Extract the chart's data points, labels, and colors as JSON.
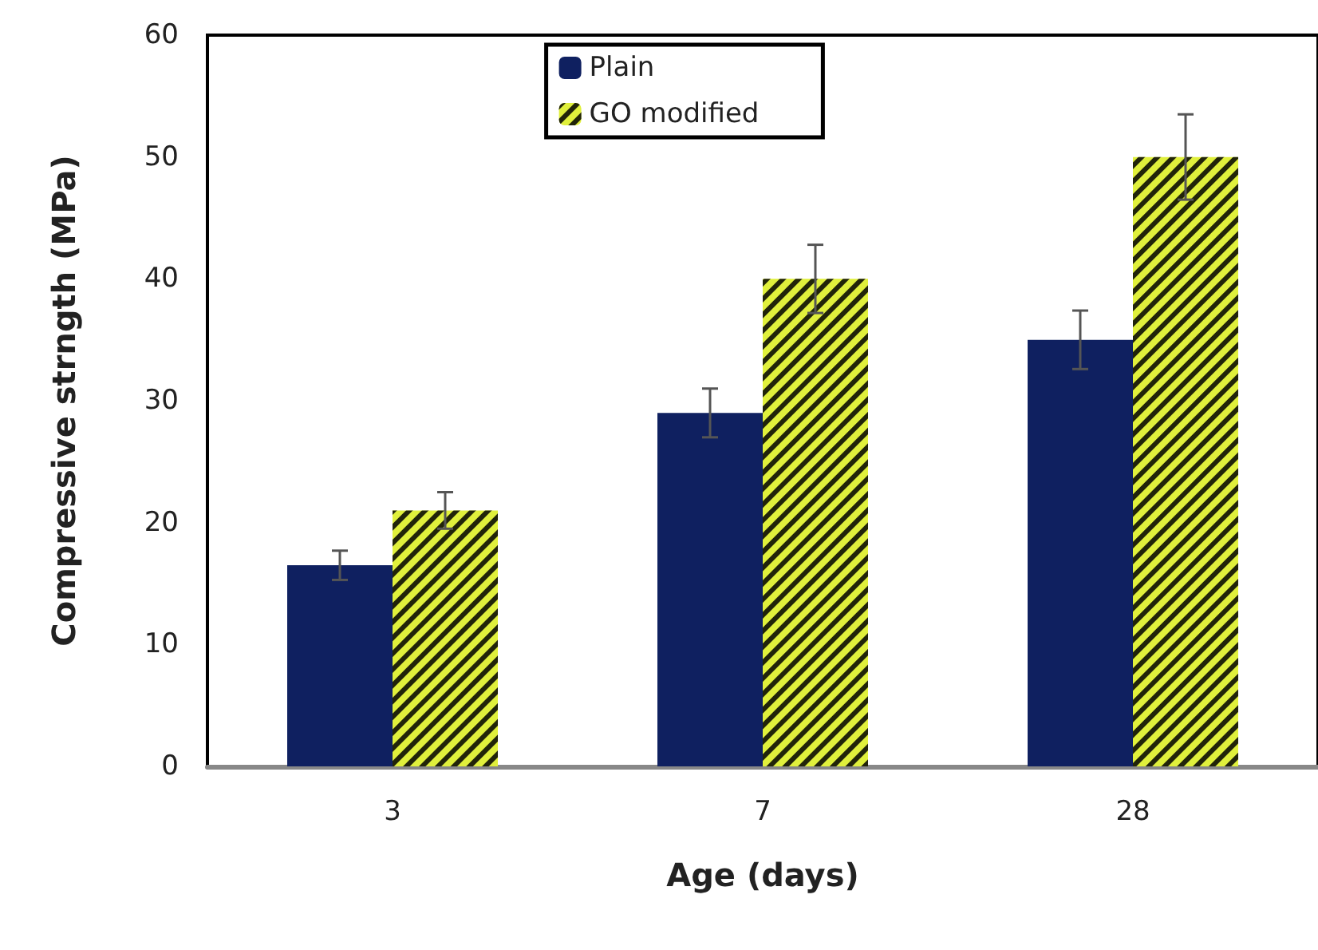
{
  "chart_data": {
    "type": "bar",
    "xlabel": "Age (days)",
    "ylabel": "Compressive strngth (MPa)",
    "categories": [
      "3",
      "7",
      "28"
    ],
    "series": [
      {
        "name": "Plain",
        "color": "#0f2060",
        "values": [
          16.5,
          29,
          35
        ],
        "errors": [
          1.2,
          2,
          2.4
        ]
      },
      {
        "name": "GO modified",
        "color": "#e0f03c",
        "values": [
          21,
          40,
          50
        ],
        "errors": [
          1.5,
          2.8,
          3.5
        ]
      }
    ],
    "ylim": [
      0,
      60
    ],
    "yticks": [
      0,
      10,
      20,
      30,
      40,
      50,
      60
    ],
    "grid": false,
    "legend": "top"
  }
}
